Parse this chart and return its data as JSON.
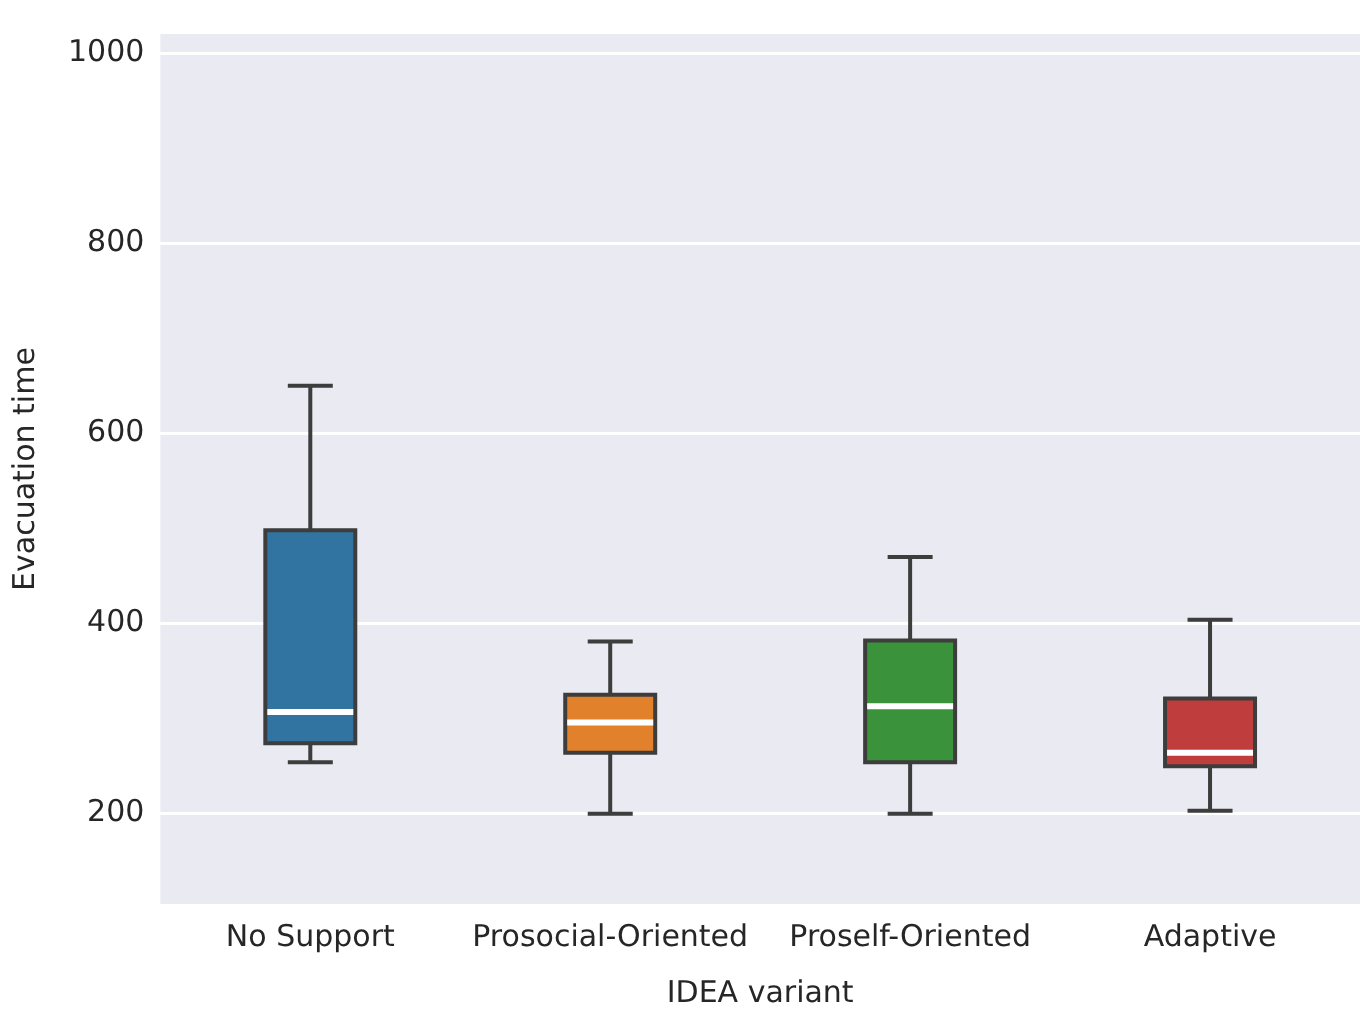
{
  "chart_data": {
    "type": "box",
    "xlabel": "IDEA variant",
    "ylabel": "Evacuation time",
    "categories": [
      "No Support",
      "Prosocial-Oriented",
      "Proself-Oriented",
      "Adaptive"
    ],
    "colors": [
      "#3274a1",
      "#e1812c",
      "#3a923a",
      "#c03d3e"
    ],
    "boxes": [
      {
        "low": 254,
        "q1": 274,
        "median": 307,
        "q3": 498,
        "high": 650
      },
      {
        "low": 200,
        "q1": 264,
        "median": 296,
        "q3": 325,
        "high": 381
      },
      {
        "low": 200,
        "q1": 254,
        "median": 313,
        "q3": 382,
        "high": 470
      },
      {
        "low": 203,
        "q1": 250,
        "median": 264,
        "q3": 321,
        "high": 404
      }
    ],
    "ylim": [
      105,
      1020
    ],
    "yticks": [
      200,
      400,
      600,
      800,
      1000
    ],
    "grid": "y"
  }
}
